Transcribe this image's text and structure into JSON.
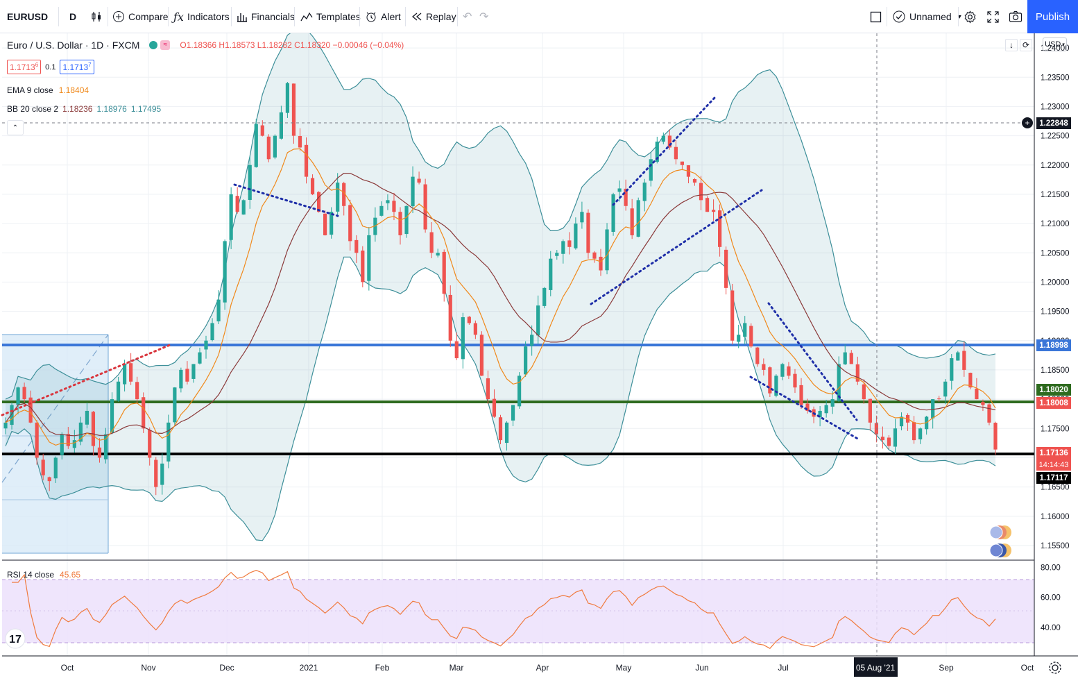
{
  "toolbar": {
    "symbol": "EURUSD",
    "interval": "D",
    "compare": "Compare",
    "indicators": "Indicators",
    "financials": "Financials",
    "templates": "Templates",
    "alert": "Alert",
    "replay": "Replay",
    "layout_name": "Unnamed",
    "publish": "Publish"
  },
  "legend": {
    "title": "Euro / U.S. Dollar · 1D · FXCM",
    "ohlc": "O1.18366 H1.18573 L1.18282 C1.18320 −0.00046 (−0.04%)",
    "sell": "1.1713",
    "sell_sup": "6",
    "spread": "0.1",
    "buy": "1.1713",
    "buy_sup": "7",
    "ema_label": "EMA 9 close",
    "ema_value": "1.18404",
    "bb_label": "BB 20 close 2",
    "bb_mid": "1.18236",
    "bb_up": "1.18976",
    "bb_low": "1.17495",
    "rsi_label": "RSI 14 close",
    "rsi_value": "45.65"
  },
  "axis": {
    "currency": "USD",
    "crosshair_price": "1.22848",
    "crosshair_date": "05 Aug '21",
    "badges": {
      "blue": "1.18998",
      "green": "1.18020",
      "red": "1.18008",
      "last": "1.17136",
      "countdown": "14:14:43",
      "black": "1.17117"
    }
  },
  "colors": {
    "up": "#26a69a",
    "down": "#ef5350",
    "ema": "#f0891b",
    "bb_mid": "#8b3a3a",
    "bb_band": "#3d8f99",
    "blue_line": "#3a76d8",
    "green_line": "#2e6b1f",
    "black_line": "#000000",
    "rsi": "#f07b3f"
  },
  "chart_data": {
    "type": "candlestick",
    "symbol": "EURUSD",
    "timeframe": "1D",
    "ylim": [
      1.1525,
      1.2425
    ],
    "y_ticks": [
      "1.24000",
      "1.23500",
      "1.23000",
      "1.22500",
      "1.22000",
      "1.21500",
      "1.21000",
      "1.20500",
      "1.20000",
      "1.19500",
      "1.19000",
      "1.18500",
      "1.18000",
      "1.17500",
      "1.17000",
      "1.16500",
      "1.16000",
      "1.15500"
    ],
    "x_labels": [
      "Oct",
      "Nov",
      "Dec",
      "2021",
      "Feb",
      "Mar",
      "Apr",
      "May",
      "Jun",
      "Jul",
      "05 Aug '21",
      "Sep",
      "Oct"
    ],
    "horizontal_levels": {
      "blue": 1.18998,
      "green": 1.1802,
      "black": 1.17117
    },
    "last_close": 1.17136,
    "closes": [
      1.176,
      1.179,
      1.182,
      1.18,
      1.176,
      1.17,
      1.167,
      1.166,
      1.17,
      1.174,
      1.172,
      1.173,
      1.176,
      1.178,
      1.172,
      1.17,
      1.174,
      1.18,
      1.183,
      1.186,
      1.183,
      1.18,
      1.175,
      1.17,
      1.165,
      1.169,
      1.176,
      1.182,
      1.185,
      1.183,
      1.186,
      1.188,
      1.19,
      1.193,
      1.197,
      1.207,
      1.215,
      1.212,
      1.214,
      1.22,
      1.227,
      1.225,
      1.221,
      1.225,
      1.229,
      1.234,
      1.225,
      1.223,
      1.218,
      1.215,
      1.212,
      1.208,
      1.212,
      1.217,
      1.213,
      1.207,
      1.205,
      1.2,
      1.208,
      1.211,
      1.213,
      1.214,
      1.212,
      1.208,
      1.213,
      1.218,
      1.217,
      1.209,
      1.205,
      1.205,
      1.198,
      1.19,
      1.187,
      1.194,
      1.193,
      1.191,
      1.184,
      1.18,
      1.177,
      1.173,
      1.176,
      1.179,
      1.184,
      1.189,
      1.191,
      1.196,
      1.199,
      1.204,
      1.205,
      1.207,
      1.206,
      1.21,
      1.212,
      1.205,
      1.204,
      1.202,
      1.209,
      1.215,
      1.216,
      1.213,
      1.208,
      1.214,
      1.217,
      1.221,
      1.224,
      1.225,
      1.223,
      1.221,
      1.22,
      1.218,
      1.217,
      1.214,
      1.212,
      1.212,
      1.206,
      1.199,
      1.19,
      1.191,
      1.193,
      1.189,
      1.186,
      1.185,
      1.181,
      1.184,
      1.186,
      1.184,
      1.182,
      1.179,
      1.178,
      1.177,
      1.178,
      1.179,
      1.18,
      1.186,
      1.188,
      1.186,
      1.183,
      1.18,
      1.176,
      1.174,
      1.173,
      1.172,
      1.175,
      1.177,
      1.176,
      1.173,
      1.175,
      1.177,
      1.18,
      1.18,
      1.183,
      1.187,
      1.188,
      1.185,
      1.182,
      1.18,
      1.179,
      1.176,
      1.1714
    ],
    "rsi": {
      "levels": [
        70,
        30
      ],
      "ticks": [
        "80.00",
        "60.00",
        "40.00"
      ],
      "last": 45.65
    }
  }
}
